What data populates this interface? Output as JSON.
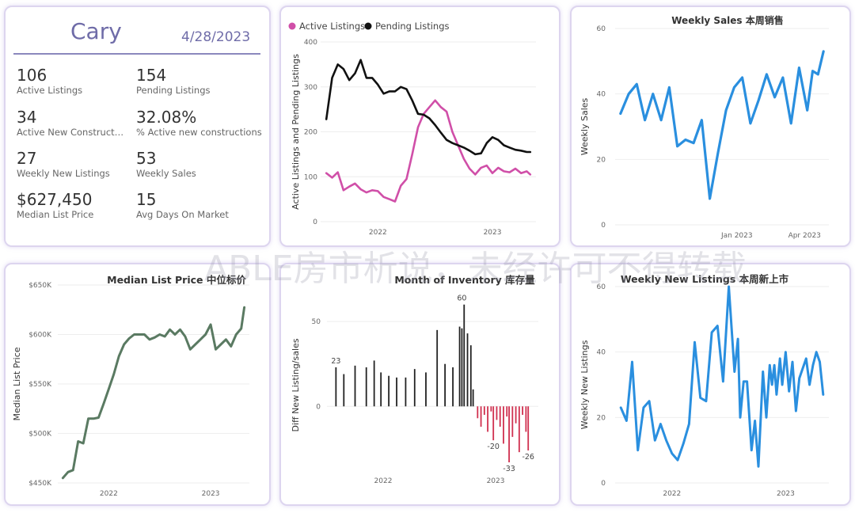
{
  "summary": {
    "city": "Cary",
    "date": "4/28/2023",
    "kpis": [
      {
        "value": "106",
        "label": "Active Listings"
      },
      {
        "value": "154",
        "label": "Pending Listings"
      },
      {
        "value": "34",
        "label": "Active New Constructi..."
      },
      {
        "value": "32.08%",
        "label": "% Active new constructions"
      },
      {
        "value": "27",
        "label": "Weekly New Listings"
      },
      {
        "value": "53",
        "label": "Weekly Sales"
      },
      {
        "value": "$627,450",
        "label": "Median List Price"
      },
      {
        "value": "15",
        "label": "Avg Days On Market"
      }
    ]
  },
  "watermark": "ABLE房市析说，未经许可不得转载",
  "colors": {
    "active": "#d04fa8",
    "pending": "#111111",
    "blue": "#2a8fdf",
    "green": "#5a7a62",
    "bar_pos": "#222222",
    "bar_neg": "#d0304f"
  },
  "chart_data": [
    {
      "type": "line",
      "title": "",
      "legend": [
        "Active Listings",
        "Pending Listings"
      ],
      "legend_position": "top-left",
      "ylabel": "Active Listings and Pending Listings",
      "xlabel": "",
      "x": [
        2021.55,
        2021.6,
        2021.65,
        2021.7,
        2021.75,
        2021.8,
        2021.85,
        2021.9,
        2021.95,
        2022.0,
        2022.05,
        2022.1,
        2022.15,
        2022.2,
        2022.25,
        2022.3,
        2022.35,
        2022.4,
        2022.45,
        2022.5,
        2022.55,
        2022.6,
        2022.65,
        2022.7,
        2022.75,
        2022.8,
        2022.85,
        2022.9,
        2022.95,
        2023.0,
        2023.05,
        2023.1,
        2023.15,
        2023.2,
        2023.25,
        2023.3,
        2023.33
      ],
      "xticks": [
        "2022",
        "2023"
      ],
      "xtick_values": [
        2022.0,
        2023.0
      ],
      "ylim": [
        0,
        400
      ],
      "yticks": [
        0,
        100,
        200,
        300,
        400
      ],
      "series": [
        {
          "name": "Active Listings",
          "color": "#d04fa8",
          "values": [
            108,
            98,
            110,
            70,
            78,
            85,
            72,
            65,
            70,
            68,
            55,
            50,
            45,
            80,
            95,
            150,
            210,
            240,
            255,
            270,
            255,
            245,
            200,
            170,
            140,
            118,
            105,
            120,
            125,
            108,
            120,
            112,
            110,
            118,
            108,
            112,
            105
          ]
        },
        {
          "name": "Pending Listings",
          "color": "#111111",
          "values": [
            228,
            320,
            350,
            340,
            315,
            330,
            360,
            320,
            320,
            305,
            285,
            290,
            290,
            300,
            295,
            270,
            240,
            238,
            230,
            215,
            198,
            182,
            175,
            170,
            165,
            158,
            150,
            152,
            175,
            188,
            182,
            170,
            165,
            160,
            158,
            155,
            155
          ]
        }
      ]
    },
    {
      "type": "line",
      "title": "Weekly Sales 本周销售",
      "ylabel": "Weekly Sales",
      "xlabel": "",
      "xticks": [
        "Jan 2023",
        "Apr 2023"
      ],
      "xtick_values": [
        2023.0,
        2023.25
      ],
      "ylim": [
        0,
        60
      ],
      "yticks": [
        0,
        20,
        40,
        60
      ],
      "x": [
        2022.57,
        2022.6,
        2022.63,
        2022.66,
        2022.69,
        2022.72,
        2022.75,
        2022.78,
        2022.81,
        2022.84,
        2022.87,
        2022.9,
        2022.93,
        2022.96,
        2022.99,
        2023.02,
        2023.05,
        2023.08,
        2023.11,
        2023.14,
        2023.17,
        2023.2,
        2023.23,
        2023.26,
        2023.28,
        2023.3,
        2023.32
      ],
      "series": [
        {
          "name": "Weekly Sales",
          "color": "#2a8fdf",
          "values": [
            34,
            40,
            43,
            32,
            40,
            32,
            42,
            24,
            26,
            25,
            32,
            8,
            22,
            35,
            42,
            45,
            31,
            38,
            46,
            39,
            45,
            31,
            48,
            35,
            47,
            46,
            53
          ]
        }
      ]
    },
    {
      "type": "line",
      "title": "Median List Price  中位标价",
      "ylabel": "Median List Price",
      "xlabel": "",
      "xticks": [
        "2022",
        "2023"
      ],
      "xtick_values": [
        2022.0,
        2023.0
      ],
      "ylim": [
        450000,
        650000
      ],
      "yticks": [
        "$450K",
        "$500K",
        "$550K",
        "$600K",
        "$650K"
      ],
      "ytick_values": [
        450000,
        500000,
        550000,
        600000,
        650000
      ],
      "x": [
        2021.55,
        2021.6,
        2021.65,
        2021.7,
        2021.75,
        2021.8,
        2021.85,
        2021.9,
        2021.95,
        2022.0,
        2022.05,
        2022.1,
        2022.15,
        2022.2,
        2022.25,
        2022.3,
        2022.35,
        2022.4,
        2022.45,
        2022.5,
        2022.55,
        2022.6,
        2022.65,
        2022.7,
        2022.75,
        2022.8,
        2022.85,
        2022.9,
        2022.95,
        2023.0,
        2023.05,
        2023.1,
        2023.15,
        2023.2,
        2023.25,
        2023.3,
        2023.33
      ],
      "series": [
        {
          "name": "Median List Price",
          "color": "#5a7a62",
          "values": [
            455000,
            461000,
            463000,
            492000,
            490000,
            515000,
            515000,
            516000,
            530000,
            545000,
            560000,
            578000,
            590000,
            596000,
            600000,
            600000,
            600000,
            595000,
            597000,
            600000,
            598000,
            605000,
            600000,
            605000,
            598000,
            585000,
            590000,
            595000,
            600000,
            610000,
            585000,
            590000,
            595000,
            588000,
            600000,
            606000,
            627450
          ]
        }
      ]
    },
    {
      "type": "bar",
      "title": "Month of Inventory 库存量",
      "ylabel": "Diff New Listing/sales",
      "xlabel": "",
      "xticks": [
        "2022",
        "2023"
      ],
      "xtick_values": [
        2022.0,
        2023.0
      ],
      "ylim": [
        -40,
        65
      ],
      "yticks": [
        0,
        50
      ],
      "data_labels": [
        {
          "x": 2021.58,
          "value": 23
        },
        {
          "x": 2022.7,
          "value": 60
        },
        {
          "x": 2022.98,
          "value": -20
        },
        {
          "x": 2023.12,
          "value": -33
        },
        {
          "x": 2023.29,
          "value": -26
        }
      ],
      "x": [
        2021.58,
        2021.65,
        2021.75,
        2021.85,
        2021.92,
        2021.98,
        2022.05,
        2022.12,
        2022.2,
        2022.28,
        2022.38,
        2022.48,
        2022.55,
        2022.62,
        2022.68,
        2022.7,
        2022.72,
        2022.75,
        2022.78,
        2022.8,
        2022.84,
        2022.87,
        2022.9,
        2022.93,
        2022.96,
        2022.98,
        2023.01,
        2023.04,
        2023.07,
        2023.1,
        2023.12,
        2023.15,
        2023.18,
        2023.21,
        2023.24,
        2023.27,
        2023.29
      ],
      "values": [
        23,
        19,
        24,
        23,
        27,
        20,
        18,
        17,
        17,
        22,
        20,
        45,
        25,
        23,
        47,
        46,
        60,
        43,
        36,
        10,
        -7,
        -12,
        -5,
        -15,
        -3,
        -20,
        -8,
        -12,
        -22,
        -6,
        -33,
        -18,
        -10,
        -27,
        -5,
        -15,
        -26
      ]
    },
    {
      "type": "line",
      "title": "Weekly New Listings  本周新上市",
      "ylabel": "Weekly New Listings",
      "xlabel": "",
      "xticks": [
        "2022",
        "2023"
      ],
      "xtick_values": [
        2022.0,
        2023.0
      ],
      "ylim": [
        0,
        60
      ],
      "yticks": [
        0,
        20,
        40,
        60
      ],
      "x": [
        2021.55,
        2021.6,
        2021.65,
        2021.7,
        2021.75,
        2021.8,
        2021.85,
        2021.9,
        2021.95,
        2022.0,
        2022.05,
        2022.1,
        2022.15,
        2022.2,
        2022.25,
        2022.3,
        2022.35,
        2022.4,
        2022.45,
        2022.5,
        2022.55,
        2022.58,
        2022.6,
        2022.63,
        2022.66,
        2022.7,
        2022.73,
        2022.76,
        2022.8,
        2022.83,
        2022.86,
        2022.88,
        2022.9,
        2022.92,
        2022.95,
        2022.97,
        2023.0,
        2023.03,
        2023.06,
        2023.09,
        2023.12,
        2023.15,
        2023.18,
        2023.21,
        2023.24,
        2023.27,
        2023.3,
        2023.33
      ],
      "series": [
        {
          "name": "Weekly New Listings",
          "color": "#2a8fdf",
          "values": [
            23,
            19,
            37,
            10,
            23,
            25,
            13,
            18,
            13,
            9,
            7,
            12,
            18,
            43,
            26,
            25,
            46,
            48,
            31,
            60,
            34,
            44,
            20,
            31,
            31,
            10,
            19,
            5,
            34,
            20,
            36,
            30,
            36,
            27,
            38,
            30,
            40,
            28,
            37,
            22,
            32,
            35,
            38,
            30,
            36,
            40,
            37,
            27
          ]
        }
      ]
    }
  ]
}
